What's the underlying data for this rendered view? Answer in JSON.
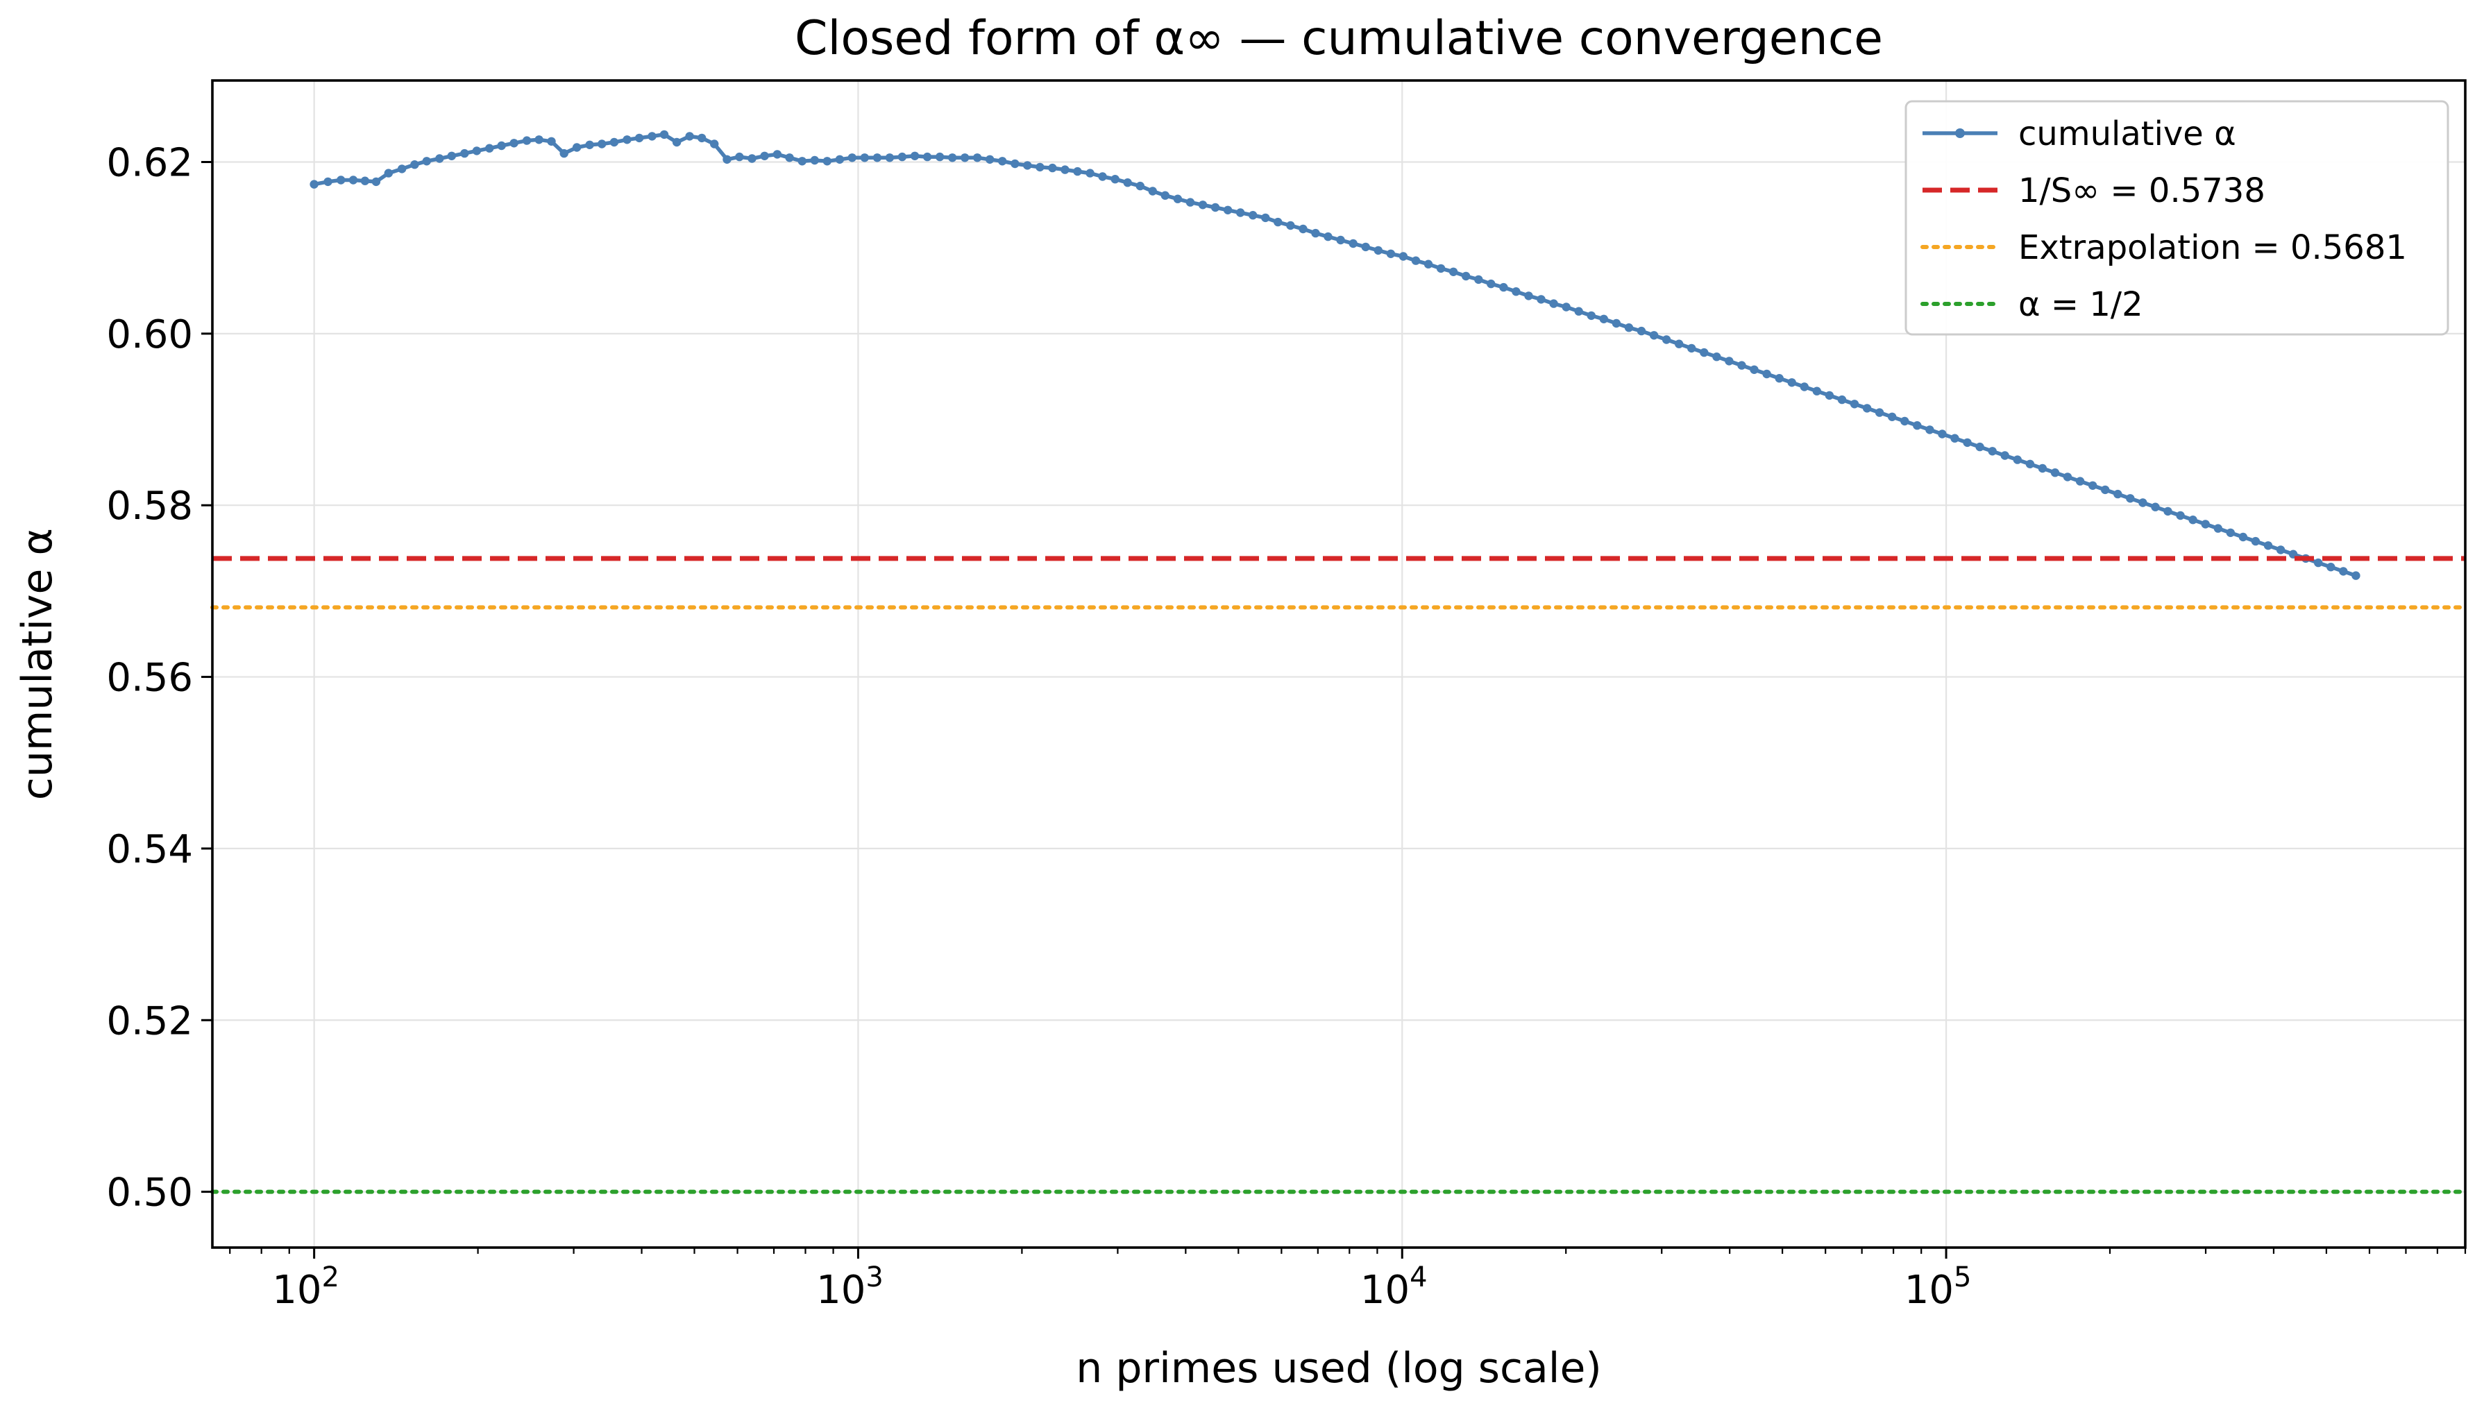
{
  "chart_data": {
    "type": "line",
    "title": "Closed form of α∞ — cumulative convergence",
    "xlabel": "n primes used (log scale)",
    "ylabel": "cumulative α",
    "xscale": "log",
    "xlim": [
      65,
      900000
    ],
    "ylim": [
      0.4935,
      0.6295
    ],
    "x_ticks": [
      {
        "value": 100,
        "base": "10",
        "exp": "2"
      },
      {
        "value": 1000,
        "base": "10",
        "exp": "3"
      },
      {
        "value": 10000,
        "base": "10",
        "exp": "4"
      },
      {
        "value": 100000,
        "base": "10",
        "exp": "5"
      }
    ],
    "y_ticks": [
      {
        "value": 0.5,
        "label": "0.50"
      },
      {
        "value": 0.52,
        "label": "0.52"
      },
      {
        "value": 0.54,
        "label": "0.54"
      },
      {
        "value": 0.56,
        "label": "0.56"
      },
      {
        "value": 0.58,
        "label": "0.58"
      },
      {
        "value": 0.6,
        "label": "0.60"
      },
      {
        "value": 0.62,
        "label": "0.62"
      }
    ],
    "grid": true,
    "legend_position": "top-right",
    "series": [
      {
        "name": "cumulative α",
        "style": "line-with-markers",
        "color": "#4a7fb5",
        "points": [
          [
            100,
            0.6174
          ],
          [
            106,
            0.6177
          ],
          [
            112,
            0.6179
          ],
          [
            118,
            0.6179
          ],
          [
            124,
            0.6178
          ],
          [
            130,
            0.6177
          ],
          [
            137,
            0.6187
          ],
          [
            145,
            0.6192
          ],
          [
            153,
            0.6197
          ],
          [
            161,
            0.6201
          ],
          [
            170,
            0.6204
          ],
          [
            179,
            0.6207
          ],
          [
            189,
            0.621
          ],
          [
            199,
            0.6213
          ],
          [
            210,
            0.6216
          ],
          [
            221,
            0.6219
          ],
          [
            233,
            0.6222
          ],
          [
            246,
            0.6225
          ],
          [
            259,
            0.6226
          ],
          [
            273,
            0.6224
          ],
          [
            288,
            0.621
          ],
          [
            304,
            0.6217
          ],
          [
            321,
            0.622
          ],
          [
            338,
            0.6221
          ],
          [
            356,
            0.6223
          ],
          [
            376,
            0.6226
          ],
          [
            396,
            0.6228
          ],
          [
            418,
            0.623
          ],
          [
            440,
            0.6232
          ],
          [
            464,
            0.6223
          ],
          [
            490,
            0.623
          ],
          [
            516,
            0.6228
          ],
          [
            544,
            0.6221
          ],
          [
            574,
            0.6203
          ],
          [
            605,
            0.6206
          ],
          [
            638,
            0.6204
          ],
          [
            673,
            0.6207
          ],
          [
            710,
            0.6209
          ],
          [
            748,
            0.6205
          ],
          [
            789,
            0.6201
          ],
          [
            832,
            0.6202
          ],
          [
            877,
            0.6201
          ],
          [
            925,
            0.6203
          ],
          [
            975,
            0.6205
          ],
          [
            1028,
            0.6205
          ],
          [
            1084,
            0.6205
          ],
          [
            1143,
            0.6205
          ],
          [
            1205,
            0.6206
          ],
          [
            1271,
            0.6207
          ],
          [
            1340,
            0.6206
          ],
          [
            1413,
            0.6206
          ],
          [
            1490,
            0.6205
          ],
          [
            1571,
            0.6205
          ],
          [
            1656,
            0.6205
          ],
          [
            1746,
            0.6203
          ],
          [
            1841,
            0.6201
          ],
          [
            1942,
            0.6198
          ],
          [
            2047,
            0.6196
          ],
          [
            2159,
            0.6194
          ],
          [
            2276,
            0.6193
          ],
          [
            2400,
            0.6191
          ],
          [
            2531,
            0.6189
          ],
          [
            2669,
            0.6187
          ],
          [
            2814,
            0.6183
          ],
          [
            2967,
            0.618
          ],
          [
            3129,
            0.6176
          ],
          [
            3299,
            0.6172
          ],
          [
            3479,
            0.6166
          ],
          [
            3668,
            0.6161
          ],
          [
            3868,
            0.6157
          ],
          [
            4079,
            0.6153
          ],
          [
            4301,
            0.615
          ],
          [
            4535,
            0.6147
          ],
          [
            4782,
            0.6144
          ],
          [
            5043,
            0.6141
          ],
          [
            5317,
            0.6138
          ],
          [
            5607,
            0.6135
          ],
          [
            5912,
            0.613
          ],
          [
            6234,
            0.6126
          ],
          [
            6574,
            0.6122
          ],
          [
            6932,
            0.6117
          ],
          [
            7309,
            0.6113
          ],
          [
            7708,
            0.6109
          ],
          [
            8127,
            0.6105
          ],
          [
            8570,
            0.6101
          ],
          [
            9037,
            0.6097
          ],
          [
            9530,
            0.6093
          ],
          [
            10049,
            0.609
          ],
          [
            10596,
            0.6085
          ],
          [
            11174,
            0.6081
          ],
          [
            11782,
            0.6076
          ],
          [
            12424,
            0.6072
          ],
          [
            13101,
            0.6067
          ],
          [
            13815,
            0.6063
          ],
          [
            14568,
            0.6058
          ],
          [
            15361,
            0.6054
          ],
          [
            16198,
            0.6049
          ],
          [
            17081,
            0.6044
          ],
          [
            18011,
            0.604
          ],
          [
            18993,
            0.6035
          ],
          [
            20027,
            0.6031
          ],
          [
            21118,
            0.6026
          ],
          [
            22269,
            0.6021
          ],
          [
            23482,
            0.6017
          ],
          [
            24761,
            0.6012
          ],
          [
            26111,
            0.6007
          ],
          [
            27533,
            0.6003
          ],
          [
            29033,
            0.5998
          ],
          [
            30615,
            0.5993
          ],
          [
            32283,
            0.5988
          ],
          [
            34042,
            0.5983
          ],
          [
            35897,
            0.5978
          ],
          [
            37853,
            0.5973
          ],
          [
            39915,
            0.5968
          ],
          [
            42090,
            0.5963
          ],
          [
            44383,
            0.5958
          ],
          [
            46801,
            0.5953
          ],
          [
            49351,
            0.5948
          ],
          [
            52040,
            0.5943
          ],
          [
            54876,
            0.5938
          ],
          [
            57866,
            0.5933
          ],
          [
            61019,
            0.5928
          ],
          [
            64343,
            0.5923
          ],
          [
            67849,
            0.5918
          ],
          [
            71546,
            0.5913
          ],
          [
            75444,
            0.5908
          ],
          [
            79555,
            0.5903
          ],
          [
            83890,
            0.5898
          ],
          [
            88460,
            0.5893
          ],
          [
            93280,
            0.5888
          ],
          [
            98363,
            0.5883
          ],
          [
            103722,
            0.5878
          ],
          [
            109374,
            0.5873
          ],
          [
            115333,
            0.5868
          ],
          [
            121617,
            0.5863
          ],
          [
            128244,
            0.5858
          ],
          [
            135231,
            0.5853
          ],
          [
            142599,
            0.5848
          ],
          [
            150369,
            0.5843
          ],
          [
            158562,
            0.5838
          ],
          [
            167201,
            0.5833
          ],
          [
            176311,
            0.5828
          ],
          [
            185918,
            0.5823
          ],
          [
            196048,
            0.5818
          ],
          [
            206730,
            0.5813
          ],
          [
            217994,
            0.5808
          ],
          [
            229872,
            0.5803
          ],
          [
            242397,
            0.5798
          ],
          [
            255604,
            0.5793
          ],
          [
            269531,
            0.5788
          ],
          [
            284217,
            0.5783
          ],
          [
            299703,
            0.5778
          ],
          [
            316033,
            0.5773
          ],
          [
            333252,
            0.5768
          ],
          [
            351410,
            0.5763
          ],
          [
            370558,
            0.5758
          ],
          [
            390748,
            0.5753
          ],
          [
            412038,
            0.5748
          ],
          [
            434489,
            0.5743
          ],
          [
            458163,
            0.5738
          ],
          [
            483127,
            0.5733
          ],
          [
            509450,
            0.5728
          ],
          [
            537208,
            0.5723
          ],
          [
            566479,
            0.5718
          ]
        ]
      },
      {
        "name": "1/S∞ = 0.5738",
        "style": "dashed",
        "color": "#d62728",
        "y": 0.5738
      },
      {
        "name": "Extrapolation = 0.5681",
        "style": "dotted",
        "color": "#f5a623",
        "y": 0.5681
      },
      {
        "name": "α = 1/2",
        "style": "dotted",
        "color": "#2ca02c",
        "y": 0.5
      }
    ]
  }
}
